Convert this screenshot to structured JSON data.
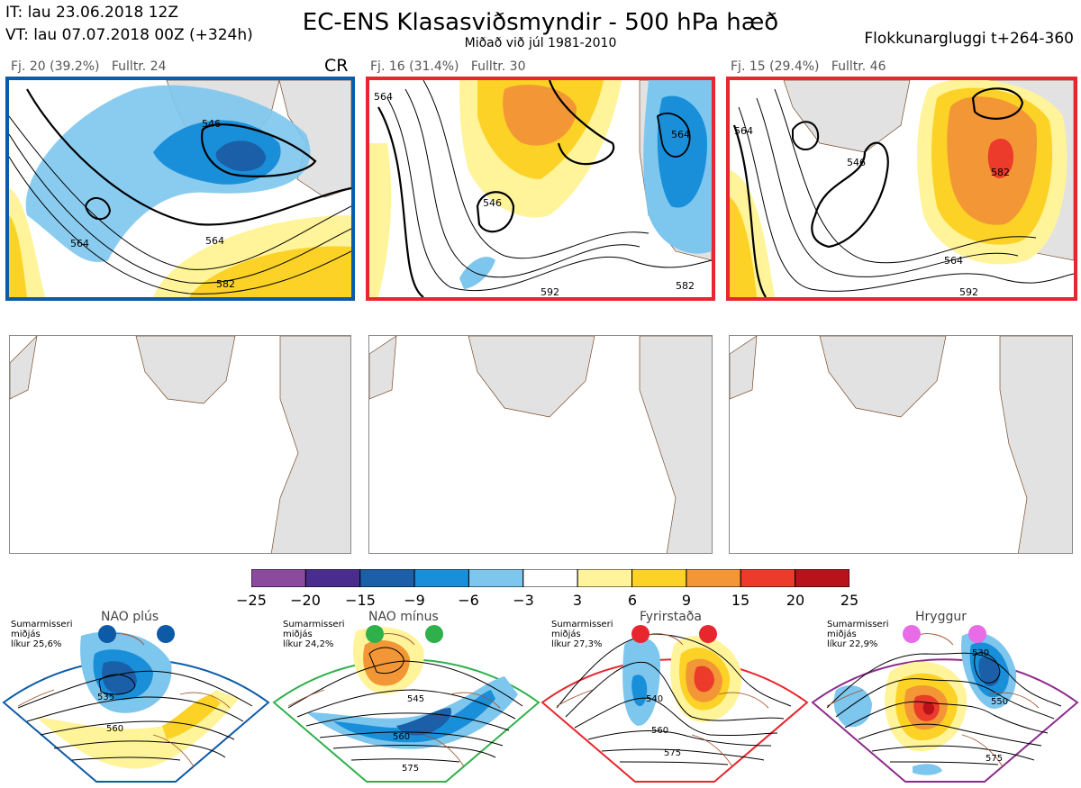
{
  "header": {
    "it_line": "IT: lau 23.06.2018 12Z",
    "vt_line": "VT: lau 07.07.2018 00Z  (+324h)",
    "title": "EC-ENS Klasasviðsmyndir - 500 hPa hæð",
    "subtitle": "Miðað við júl 1981-2010",
    "window": "Flokkunargluggi t+264-360"
  },
  "clusters": [
    {
      "label": "Fj. 20 (39.2%)",
      "rep": "Fulltr. 24",
      "tag": "CR",
      "border_color": "#0d5aa7",
      "contours": [
        "564",
        "546",
        "582"
      ]
    },
    {
      "label": "Fj. 16 (31.4%)",
      "rep": "Fulltr. 30",
      "tag": "",
      "border_color": "#e8262d",
      "contours": [
        "564",
        "546",
        "582",
        "564",
        "592"
      ]
    },
    {
      "label": "Fj. 15 (29.4%)",
      "rep": "Fulltr. 46",
      "tag": "",
      "border_color": "#e8262d",
      "contours": [
        "564",
        "546",
        "582",
        "564",
        "592"
      ]
    }
  ],
  "colorbar": {
    "colors": [
      "#8c4a9e",
      "#4a2c8e",
      "#1a5fa8",
      "#1a8fd9",
      "#7dc6ee",
      "#ffffff",
      "#fff49a",
      "#fcd226",
      "#f39635",
      "#ec3a2b",
      "#b8131a"
    ],
    "ticks": [
      "−25",
      "−20",
      "−15",
      "−9",
      "−6",
      "−3",
      "3",
      "6",
      "9",
      "15",
      "20",
      "25"
    ]
  },
  "regimes": [
    {
      "name": "NAO plús",
      "season": "Sumarmisseri",
      "fit": "miðjás",
      "prob": "líkur 25,6%",
      "dot_color": "#0d5aa7",
      "border_color": "#0d5aa7",
      "contours": [
        "535",
        "560"
      ]
    },
    {
      "name": "NAO mínus",
      "season": "Sumarmisseri",
      "fit": "miðjás",
      "prob": "líkur 24,2%",
      "dot_color": "#2eb04a",
      "border_color": "#2eb04a",
      "contours": [
        "545",
        "560",
        "575"
      ]
    },
    {
      "name": "Fyrirstaða",
      "season": "Sumarmisseri",
      "fit": "miðjás",
      "prob": "líkur 27,3%",
      "dot_color": "#e8262d",
      "border_color": "#e8262d",
      "contours": [
        "540",
        "560",
        "575"
      ]
    },
    {
      "name": "Hryggur",
      "season": "Sumarmisseri",
      "fit": "miðjás",
      "prob": "líkur 22,9%",
      "dot_color": "#e86be8",
      "border_color": "#8c2a8c",
      "contours": [
        "530",
        "550",
        "575"
      ]
    }
  ]
}
